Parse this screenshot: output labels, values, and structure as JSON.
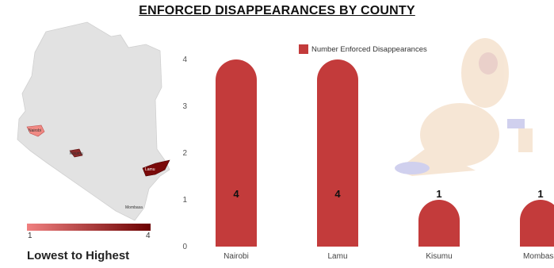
{
  "title": "ENFORCED DISAPPEARANCES BY COUNTY",
  "map": {
    "county_labels": [
      "Nairobi",
      "Kisumu",
      "Lamu",
      "Mombasa"
    ],
    "scale_min": "1",
    "scale_max": "4",
    "caption": "Lowest to Highest",
    "colors": {
      "low": "#f08080",
      "high": "#6b0000",
      "land": "#e0e0e0"
    }
  },
  "chart_data": {
    "type": "bar",
    "categories": [
      "Nairobi",
      "Lamu",
      "Kisumu",
      "Mombasa"
    ],
    "series": [
      {
        "name": "Number Enforced Disappearances",
        "values": [
          4,
          4,
          1,
          1
        ]
      }
    ],
    "ylim": [
      0,
      4
    ],
    "yticks": [
      "0",
      "1",
      "2",
      "3",
      "4"
    ],
    "legend": "top-center",
    "bar_color": "#c33b3b",
    "grid": false
  },
  "illustration": "kneeling-investigator-icon"
}
